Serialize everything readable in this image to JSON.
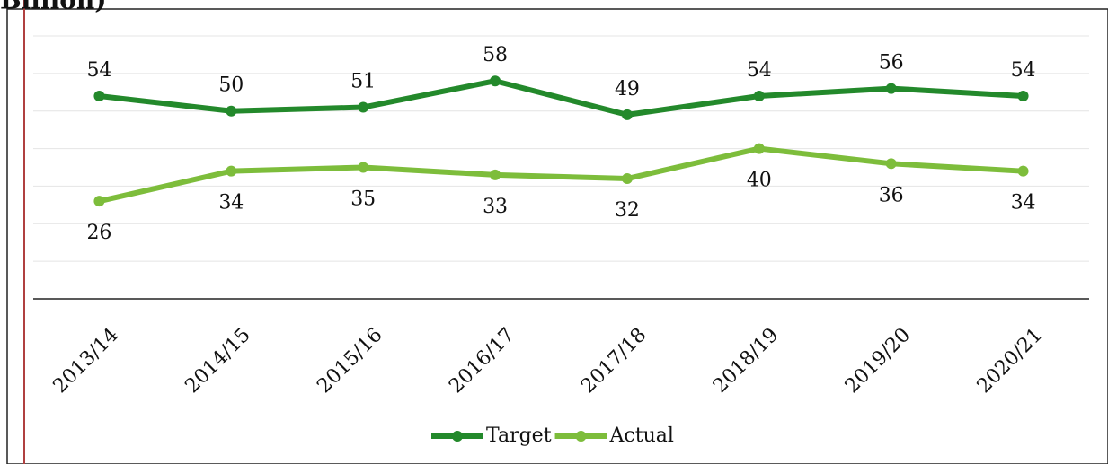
{
  "chart_data": {
    "type": "line",
    "title": "Billion)",
    "categories": [
      "2013/14",
      "2014/15",
      "2015/16",
      "2016/17",
      "2017/18",
      "2018/19",
      "2019/20",
      "2020/21"
    ],
    "series": [
      {
        "name": "Target",
        "color": "#23892b",
        "values": [
          54,
          50,
          51,
          58,
          49,
          54,
          56,
          54
        ]
      },
      {
        "name": "Actual",
        "color": "#7dbd3b",
        "values": [
          26,
          34,
          35,
          33,
          32,
          40,
          36,
          34
        ]
      }
    ],
    "ylim": [
      0,
      70
    ],
    "yticks": [
      0,
      10,
      20,
      30,
      40,
      50,
      60,
      70
    ],
    "grid": true,
    "legend": "bottom"
  }
}
